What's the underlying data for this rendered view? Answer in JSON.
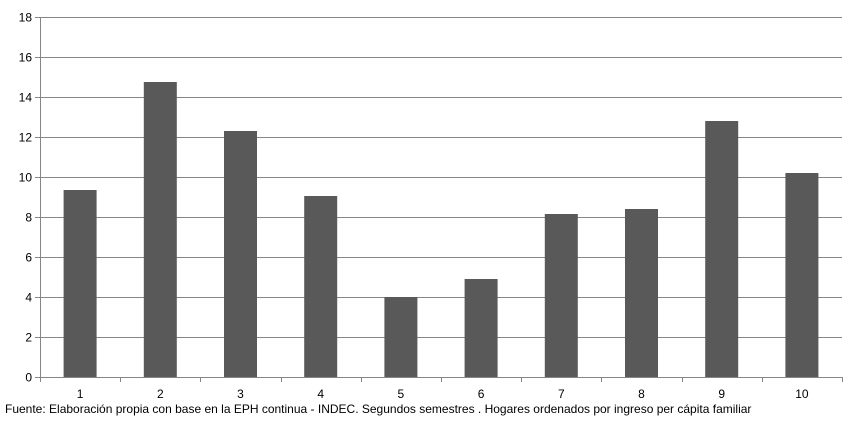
{
  "chart_data": {
    "type": "bar",
    "categories": [
      "1",
      "2",
      "3",
      "4",
      "5",
      "6",
      "7",
      "8",
      "9",
      "10"
    ],
    "values": [
      9.35,
      14.75,
      12.3,
      9.05,
      4.0,
      4.9,
      8.15,
      8.4,
      12.8,
      10.2
    ],
    "title": "",
    "xlabel": "",
    "ylabel": "",
    "ylim": [
      0,
      18
    ],
    "yticks": [
      "0",
      "2",
      "4",
      "6",
      "8",
      "10",
      "12",
      "14",
      "16",
      "18"
    ],
    "grid": true,
    "legend": "none",
    "bar_color": "#595959",
    "grid_color": "#868686",
    "source": "Fuente: Elaboración propia con base en la EPH continua - INDEC. Segundos semestres . Hogares ordenados por ingreso per cápita familiar"
  }
}
